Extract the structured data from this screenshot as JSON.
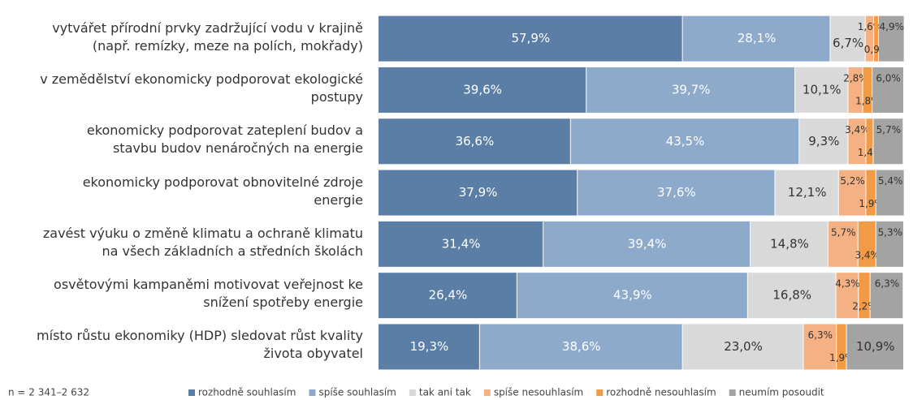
{
  "chart_data": {
    "type": "stacked-bar-horizontal",
    "categories": [
      "vytvářet přírodní prvky zadržující vodu v krajině\n(např. remízky, meze na polích, mokřady)",
      "v zemědělství ekonomicky podporovat ekologické\npostupy",
      "ekonomicky podporovat zateplení budov a\nstavbu budov nenáročných na energie",
      "ekonomicky podporovat obnovitelné zdroje\nenergie",
      "zavést výuku o změně klimatu a ochraně klimatu\nna všech základních a středních školách",
      "osvětovými kampaněmi motivovat veřejnost ke\nsnížení spotřeby energie",
      "místo růstu ekonomiky (HDP) sledovat růst kvality\nživota obyvatel"
    ],
    "xlim": [
      0,
      100
    ],
    "note": "n = 2 341–2 632",
    "series": [
      {
        "name": "rozhodně souhlasím",
        "color": "#5a7ea6",
        "values": [
          57.9,
          39.6,
          36.6,
          37.9,
          31.4,
          26.4,
          19.3
        ],
        "value_labels": [
          "57,9%",
          "39,6%",
          "36,6%",
          "37,9%",
          "31,4%",
          "26,4%",
          "19,3%"
        ]
      },
      {
        "name": "spíše souhlasím",
        "color": "#8eaacb",
        "values": [
          28.1,
          39.7,
          43.5,
          37.6,
          39.4,
          43.9,
          38.6
        ],
        "value_labels": [
          "28,1%",
          "39,7%",
          "43,5%",
          "37,6%",
          "39,4%",
          "43,9%",
          "38,6%"
        ]
      },
      {
        "name": "tak ani tak",
        "color": "#d9d9d9",
        "values": [
          6.7,
          10.1,
          9.3,
          12.1,
          14.8,
          16.8,
          23.0
        ],
        "value_labels": [
          "6,7%",
          "10,1%",
          "9,3%",
          "12,1%",
          "14,8%",
          "16,8%",
          "23,0%"
        ]
      },
      {
        "name": "spíše nesouhlasím",
        "color": "#f4b183",
        "values": [
          1.6,
          2.8,
          3.4,
          5.2,
          5.7,
          4.3,
          6.3
        ],
        "value_labels": [
          "1,6%",
          "2,8%",
          "3,4%",
          "5,2%",
          "5,7%",
          "4,3%",
          "6,3%"
        ]
      },
      {
        "name": "rozhodně nesouhlasím",
        "color": "#f39a45",
        "values": [
          0.9,
          1.8,
          1.4,
          1.9,
          3.4,
          2.2,
          1.9
        ],
        "value_labels": [
          "0,9%",
          "1,8%",
          "1,4%",
          "1,9%",
          "3,4%",
          "2,2%",
          "1,9%"
        ]
      },
      {
        "name": "neumím posoudit",
        "color": "#a3a3a3",
        "values": [
          4.9,
          6.0,
          5.7,
          5.4,
          5.3,
          6.3,
          10.9
        ],
        "value_labels": [
          "4,9%",
          "6,0%",
          "5,7%",
          "5,4%",
          "5,3%",
          "6,3%",
          "10,9%"
        ]
      }
    ]
  }
}
